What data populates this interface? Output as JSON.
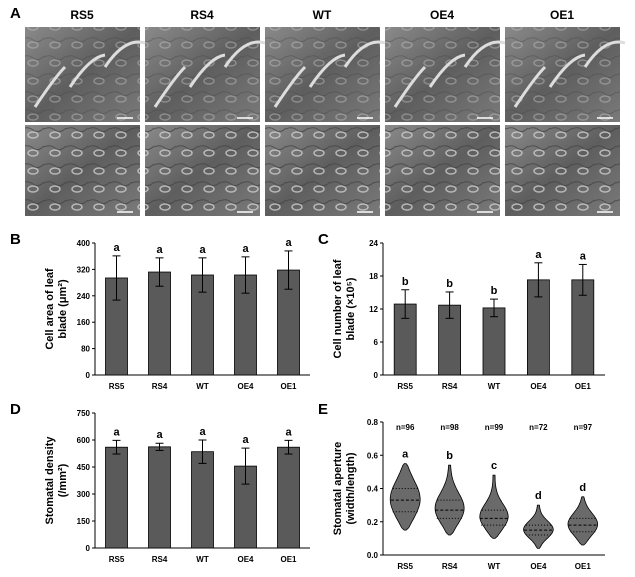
{
  "figure": {
    "panels": [
      "A",
      "B",
      "C",
      "D",
      "E"
    ],
    "image_columns": [
      "RS5",
      "RS4",
      "WT",
      "OE4",
      "OE1"
    ]
  },
  "chart_data": [
    {
      "type": "bar",
      "ylabel": [
        "Cell area of leaf",
        "blade (μm²)"
      ],
      "categories": [
        "RS5",
        "RS4",
        "WT",
        "OE4",
        "OE1"
      ],
      "values": [
        294,
        312,
        303,
        303,
        318
      ],
      "errors": [
        67,
        43,
        52,
        55,
        58
      ],
      "letters": [
        "a",
        "a",
        "a",
        "a",
        "a"
      ],
      "color": "#5a5a5a",
      "ylim": [
        0,
        400
      ],
      "yticks": [
        0,
        80,
        160,
        240,
        320,
        400
      ]
    },
    {
      "type": "bar",
      "ylabel": [
        "Cell number of leaf",
        "blade (×10⁵)"
      ],
      "categories": [
        "RS5",
        "RS4",
        "WT",
        "OE4",
        "OE1"
      ],
      "values": [
        12.9,
        12.7,
        12.2,
        17.3,
        17.3
      ],
      "errors": [
        2.6,
        2.4,
        1.6,
        3.1,
        2.8
      ],
      "letters": [
        "b",
        "b",
        "b",
        "a",
        "a"
      ],
      "color": "#5a5a5a",
      "ylim": [
        0,
        24
      ],
      "yticks": [
        0,
        6,
        12,
        18,
        24
      ]
    },
    {
      "type": "bar",
      "ylabel": [
        "Stomatal density",
        "(/mm²)"
      ],
      "categories": [
        "RS5",
        "RS4",
        "WT",
        "OE4",
        "OE1"
      ],
      "values": [
        560,
        562,
        535,
        455,
        560
      ],
      "errors": [
        38,
        20,
        65,
        100,
        38
      ],
      "letters": [
        "a",
        "a",
        "a",
        "a",
        "a"
      ],
      "color": "#5a5a5a",
      "ylim": [
        0,
        750
      ],
      "yticks": [
        0,
        150,
        300,
        450,
        600,
        750
      ]
    },
    {
      "type": "violin",
      "ylabel": [
        "Stomatal aperture",
        "(width/length)"
      ],
      "categories": [
        "RS5",
        "RS4",
        "WT",
        "OE4",
        "OE1"
      ],
      "n_labels": [
        "n=96",
        "n=98",
        "n=99",
        "n=72",
        "n=97"
      ],
      "min": [
        0.15,
        0.12,
        0.1,
        0.04,
        0.06
      ],
      "q1": [
        0.26,
        0.22,
        0.18,
        0.12,
        0.14
      ],
      "median": [
        0.33,
        0.27,
        0.22,
        0.15,
        0.18
      ],
      "q3": [
        0.4,
        0.33,
        0.27,
        0.18,
        0.22
      ],
      "max": [
        0.55,
        0.54,
        0.48,
        0.3,
        0.35
      ],
      "letters": [
        "a",
        "b",
        "c",
        "d",
        "d"
      ],
      "color": "#5a5a5a",
      "ylim": [
        0,
        0.8
      ],
      "yticks": [
        {
          "value": 0,
          "label": "0.0"
        },
        0.2,
        0.4,
        0.6,
        0.8
      ]
    }
  ]
}
